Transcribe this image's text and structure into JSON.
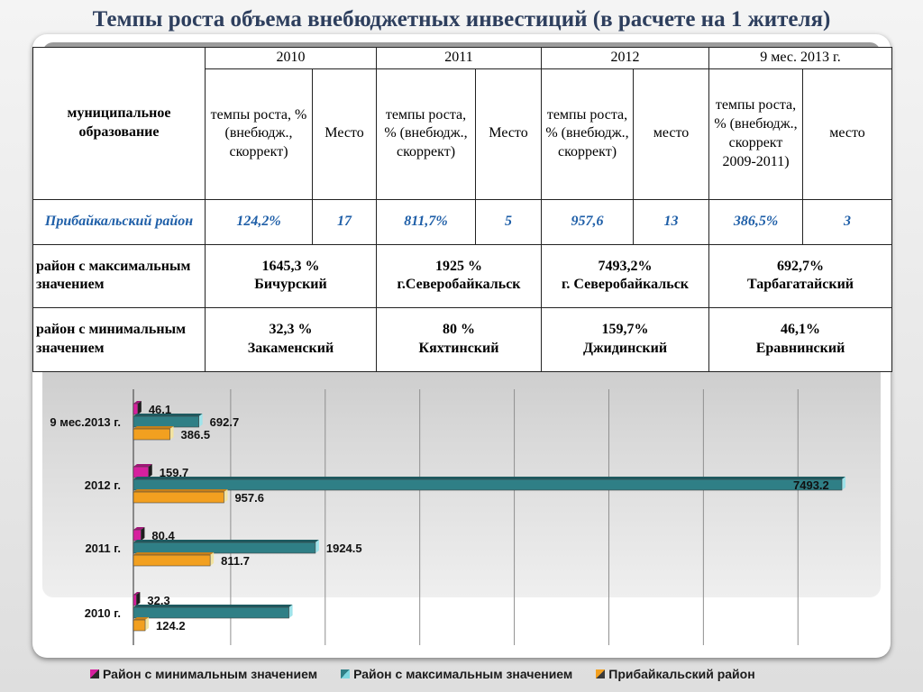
{
  "title": "Темпы роста объема внебюджетных инвестиций (в расчете на 1 жителя)",
  "table": {
    "row_header": "муниципальное образование",
    "years": [
      "2010",
      "2011",
      "2012",
      "9 мес.  2013 г."
    ],
    "subheaders": [
      [
        "темпы роста, % (внебюдж., скоррект)",
        "Место"
      ],
      [
        "темпы роста, % (внебюдж., скоррект)",
        "Место"
      ],
      [
        "темпы роста, % (внебюдж., скоррект)",
        "место"
      ],
      [
        "темпы роста, % (внебюдж., скоррект 2009-2011)",
        "место"
      ]
    ],
    "pribaikalsky": {
      "label": "Прибайкальский район",
      "values": [
        "124,2%",
        "17",
        "811,7%",
        "5",
        "957,6",
        "13",
        "386,5%",
        "3"
      ]
    },
    "max_row": {
      "label": "район с максимальным значением",
      "cells": [
        {
          "value": "1645,3  %",
          "district": "Бичурский"
        },
        {
          "value": "1925 %",
          "district": "г.Северобайкальск"
        },
        {
          "value": "7493,2%",
          "district": "г. Северобайкальск"
        },
        {
          "value": "692,7%",
          "district": "Тарбагатайский"
        }
      ]
    },
    "min_row": {
      "label": "район с минимальным значением",
      "cells": [
        {
          "value": "32,3 %",
          "district": "Закаменский"
        },
        {
          "value": "80 %",
          "district": "Кяхтинский"
        },
        {
          "value": "159,7%",
          "district": "Джидинский"
        },
        {
          "value": "46,1%",
          "district": "Еравнинский"
        }
      ]
    }
  },
  "chart_data": {
    "type": "bar",
    "orientation": "horizontal",
    "categories": [
      "9 мес.2013 г.",
      "2012 г.",
      "2011 г.",
      "2010 г."
    ],
    "series": [
      {
        "name": "Район с минимальным значением",
        "values": [
          46.1,
          159.7,
          80.4,
          32.3
        ],
        "color": "#d6209e"
      },
      {
        "name": "Район с максимальным значением",
        "values": [
          692.7,
          7493.2,
          1924.5,
          1645.3
        ],
        "color": "#2f7f86"
      },
      {
        "name": "Прибайкальский район",
        "values": [
          386.5,
          957.6,
          811.7,
          124.2
        ],
        "color": "#f2a020"
      }
    ],
    "data_labels": [
      [
        "46.1",
        "159.7",
        "80.4",
        "32.3"
      ],
      [
        "692.7",
        "7493.2",
        "1924.5",
        ""
      ],
      [
        "386.5",
        "957.6",
        "811.7",
        "124.2"
      ]
    ],
    "xlim": [
      0,
      8000
    ],
    "grid": true,
    "legend_position": "bottom"
  }
}
